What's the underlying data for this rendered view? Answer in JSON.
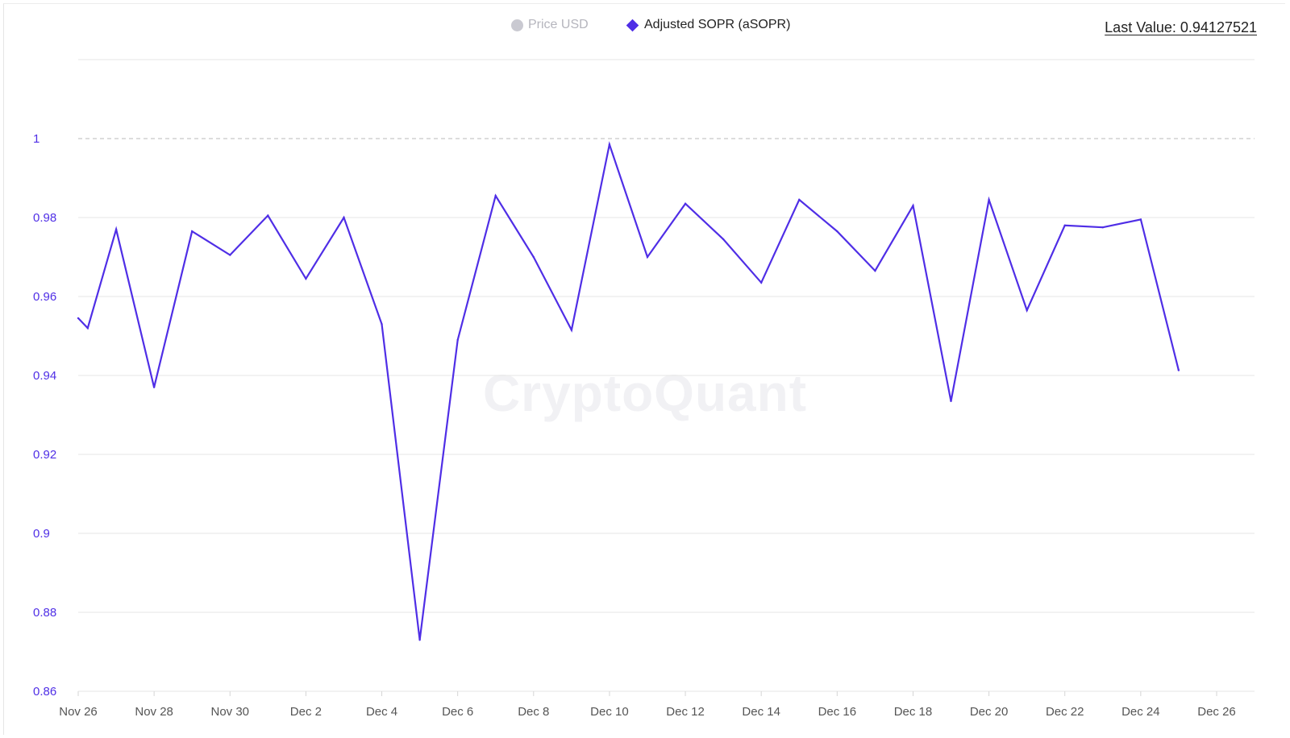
{
  "legend": {
    "price_label": "Price USD",
    "asopr_label": "Adjusted SOPR (aSOPR)"
  },
  "last_value_label": "Last Value: 0.94127521",
  "watermark": "CryptoQuant",
  "colors": {
    "series": "#4f2ee6",
    "price_legend": "#c9c9d1",
    "grid": "#e6e6e6",
    "reference_line": "#b8b8b8",
    "y_tick": "#4f2ee6"
  },
  "chart_data": {
    "type": "line",
    "title": "",
    "xlabel": "",
    "ylabel": "",
    "ylim": [
      0.86,
      1.02
    ],
    "y_ticks": [
      0.86,
      0.88,
      0.9,
      0.92,
      0.94,
      0.96,
      0.98,
      1
    ],
    "y_tick_labels": [
      "0.86",
      "0.88",
      "0.9",
      "0.92",
      "0.94",
      "0.96",
      "0.98",
      "1"
    ],
    "reference_line": {
      "y": 1,
      "style": "dashed"
    },
    "grid": true,
    "legend_position": "top-center",
    "x_tick_labels": [
      "Nov 26",
      "Nov 28",
      "Nov 30",
      "Dec 2",
      "Dec 4",
      "Dec 6",
      "Dec 8",
      "Dec 10",
      "Dec 12",
      "Dec 14",
      "Dec 16",
      "Dec 18",
      "Dec 20",
      "Dec 22",
      "Dec 24",
      "Dec 26"
    ],
    "x_tick_dates": [
      "2024-11-26",
      "2024-11-28",
      "2024-11-30",
      "2024-12-02",
      "2024-12-04",
      "2024-12-06",
      "2024-12-08",
      "2024-12-10",
      "2024-12-12",
      "2024-12-14",
      "2024-12-16",
      "2024-12-18",
      "2024-12-20",
      "2024-12-22",
      "2024-12-24",
      "2024-12-26"
    ],
    "series": [
      {
        "name": "Adjusted SOPR (aSOPR)",
        "points": [
          {
            "date": "2024-11-26 00:00",
            "value": 0.9545
          },
          {
            "date": "2024-11-26 06:00",
            "value": 0.952
          },
          {
            "date": "2024-11-27",
            "value": 0.977
          },
          {
            "date": "2024-11-28",
            "value": 0.937
          },
          {
            "date": "2024-11-29",
            "value": 0.9765
          },
          {
            "date": "2024-11-30",
            "value": 0.9705
          },
          {
            "date": "2024-12-01",
            "value": 0.9805
          },
          {
            "date": "2024-12-02",
            "value": 0.9645
          },
          {
            "date": "2024-12-03",
            "value": 0.98
          },
          {
            "date": "2024-12-04",
            "value": 0.953
          },
          {
            "date": "2024-12-05",
            "value": 0.873
          },
          {
            "date": "2024-12-06",
            "value": 0.949
          },
          {
            "date": "2024-12-07",
            "value": 0.9855
          },
          {
            "date": "2024-12-08",
            "value": 0.97
          },
          {
            "date": "2024-12-09",
            "value": 0.9515
          },
          {
            "date": "2024-12-10",
            "value": 0.9985
          },
          {
            "date": "2024-12-11",
            "value": 0.97
          },
          {
            "date": "2024-12-12",
            "value": 0.9835
          },
          {
            "date": "2024-12-13",
            "value": 0.9745
          },
          {
            "date": "2024-12-14",
            "value": 0.9635
          },
          {
            "date": "2024-12-15",
            "value": 0.9845
          },
          {
            "date": "2024-12-16",
            "value": 0.9765
          },
          {
            "date": "2024-12-17",
            "value": 0.9665
          },
          {
            "date": "2024-12-18",
            "value": 0.983
          },
          {
            "date": "2024-12-19",
            "value": 0.9335
          },
          {
            "date": "2024-12-20",
            "value": 0.9845
          },
          {
            "date": "2024-12-21",
            "value": 0.9565
          },
          {
            "date": "2024-12-22",
            "value": 0.978
          },
          {
            "date": "2024-12-23",
            "value": 0.9775
          },
          {
            "date": "2024-12-24",
            "value": 0.9795
          },
          {
            "date": "2024-12-25",
            "value": 0.9413
          }
        ]
      }
    ]
  }
}
